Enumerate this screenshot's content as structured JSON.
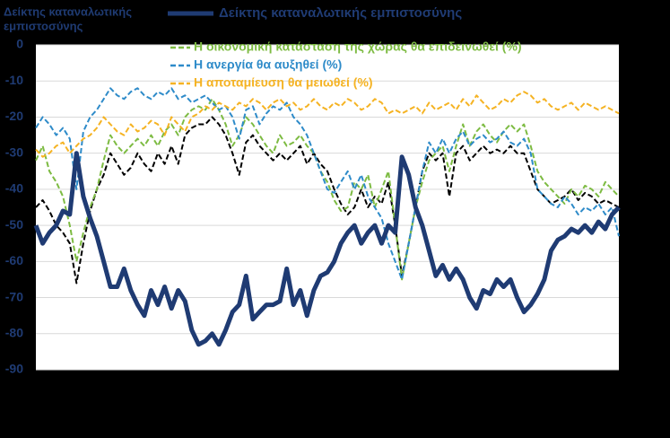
{
  "chart_data": {
    "type": "line",
    "y_label": [
      "Δείκτης καταναλωτικής",
      "εμπιστοσύνης"
    ],
    "ylim": [
      -90,
      0
    ],
    "yticks": [
      -90,
      -80,
      -70,
      -60,
      -50,
      -40,
      -30,
      -20,
      -10,
      0
    ],
    "grid": true,
    "series": [
      {
        "name": "Δείκτης καταναλωτικής εμπιστοσύνης",
        "color": "#1f3b73",
        "width": 5,
        "dashed": false,
        "values": [
          -50,
          -55,
          -52,
          -50,
          -46,
          -47,
          -30,
          -42,
          -48,
          -53,
          -60,
          -67,
          -67,
          -62,
          -68,
          -72,
          -75,
          -68,
          -72,
          -67,
          -73,
          -68,
          -71,
          -79,
          -83,
          -82,
          -80,
          -83,
          -79,
          -74,
          -72,
          -64,
          -76,
          -74,
          -72,
          -72,
          -71,
          -62,
          -72,
          -68,
          -75,
          -68,
          -64,
          -63,
          -60,
          -55,
          -52,
          -50,
          -55,
          -52,
          -50,
          -55,
          -50,
          -52,
          -31,
          -36,
          -45,
          -50,
          -57,
          -64,
          -61,
          -65,
          -62,
          -65,
          -70,
          -73,
          -68,
          -69,
          -65,
          -67,
          -65,
          -70,
          -74,
          -72,
          -69,
          -65,
          -57,
          -54,
          -53,
          -51,
          -52,
          -50,
          -52,
          -49,
          -51,
          -47,
          -45
        ]
      },
      {
        "color": "#000000",
        "width": 2,
        "dashed": true,
        "values": [
          -45,
          -43,
          -46,
          -50,
          -52,
          -55,
          -66,
          -55,
          -46,
          -40,
          -36,
          -30,
          -33,
          -36,
          -34,
          -30,
          -33,
          -35,
          -30,
          -33,
          -28,
          -33,
          -25,
          -23,
          -22,
          -22,
          -20,
          -22,
          -25,
          -30,
          -36,
          -27,
          -25,
          -28,
          -30,
          -32,
          -30,
          -32,
          -30,
          -28,
          -33,
          -30,
          -33,
          -35,
          -40,
          -44,
          -47,
          -45,
          -40,
          -45,
          -42,
          -44,
          -38,
          -50,
          -64,
          -55,
          -45,
          -35,
          -30,
          -32,
          -30,
          -42,
          -30,
          -28,
          -32,
          -30,
          -28,
          -30,
          -29,
          -30,
          -28,
          -30,
          -30,
          -35,
          -40,
          -42,
          -44,
          -43,
          -42,
          -40,
          -43,
          -41,
          -42,
          -44,
          -43,
          -44,
          -45
        ]
      },
      {
        "name": "Η οικονομική κατάσταση της χώρας θα επιδεινωθεί (%)",
        "color": "#7dbb42",
        "width": 2,
        "dashed": true,
        "values": [
          -32,
          -28,
          -35,
          -38,
          -42,
          -50,
          -60,
          -52,
          -45,
          -40,
          -32,
          -25,
          -28,
          -30,
          -28,
          -26,
          -28,
          -25,
          -28,
          -24,
          -22,
          -25,
          -20,
          -18,
          -17,
          -18,
          -15,
          -18,
          -22,
          -28,
          -25,
          -20,
          -22,
          -25,
          -28,
          -30,
          -25,
          -28,
          -27,
          -25,
          -28,
          -30,
          -35,
          -38,
          -43,
          -46,
          -45,
          -38,
          -40,
          -36,
          -45,
          -40,
          -35,
          -50,
          -65,
          -55,
          -45,
          -38,
          -32,
          -30,
          -28,
          -35,
          -28,
          -22,
          -28,
          -24,
          -22,
          -25,
          -27,
          -24,
          -22,
          -24,
          -22,
          -28,
          -35,
          -38,
          -40,
          -42,
          -44,
          -40,
          -42,
          -39,
          -40,
          -42,
          -38,
          -40,
          -42
        ]
      },
      {
        "name": "Η ανεργία θα αυξηθεί (%)",
        "color": "#2e8bc9",
        "width": 2,
        "dashed": true,
        "values": [
          -23,
          -20,
          -22,
          -25,
          -23,
          -26,
          -40,
          -24,
          -20,
          -18,
          -15,
          -12,
          -14,
          -15,
          -13,
          -12,
          -14,
          -15,
          -13,
          -14,
          -12,
          -15,
          -14,
          -16,
          -15,
          -14,
          -16,
          -18,
          -17,
          -20,
          -26,
          -18,
          -17,
          -22,
          -19,
          -17,
          -18,
          -16,
          -20,
          -22,
          -25,
          -30,
          -35,
          -40,
          -41,
          -38,
          -35,
          -40,
          -36,
          -42,
          -45,
          -48,
          -55,
          -60,
          -65,
          -55,
          -45,
          -35,
          -27,
          -30,
          -26,
          -30,
          -26,
          -24,
          -28,
          -26,
          -25,
          -27,
          -26,
          -24,
          -27,
          -28,
          -26,
          -30,
          -40,
          -42,
          -44,
          -45,
          -42,
          -44,
          -47,
          -45,
          -46,
          -44,
          -47,
          -45,
          -53
        ]
      },
      {
        "name": "Η αποταμίευση θα μειωθεί (%)",
        "color": "#f5b323",
        "width": 2,
        "dashed": true,
        "values": [
          -29,
          -31,
          -30,
          -28,
          -27,
          -30,
          -28,
          -26,
          -25,
          -23,
          -20,
          -22,
          -24,
          -25,
          -22,
          -24,
          -23,
          -21,
          -22,
          -25,
          -20,
          -22,
          -24,
          -20,
          -19,
          -17,
          -18,
          -16,
          -17,
          -18,
          -16,
          -17,
          -15,
          -16,
          -18,
          -16,
          -15,
          -17,
          -16,
          -18,
          -17,
          -15,
          -17,
          -18,
          -16,
          -17,
          -15,
          -16,
          -18,
          -17,
          -15,
          -16,
          -19,
          -18,
          -19,
          -18,
          -17,
          -19,
          -16,
          -18,
          -17,
          -16,
          -18,
          -15,
          -17,
          -14,
          -16,
          -18,
          -17,
          -15,
          -16,
          -14,
          -13,
          -14,
          -16,
          -15,
          -17,
          -18,
          -17,
          -16,
          -18,
          -16,
          -17,
          -18,
          -17,
          -18,
          -19
        ]
      }
    ]
  }
}
